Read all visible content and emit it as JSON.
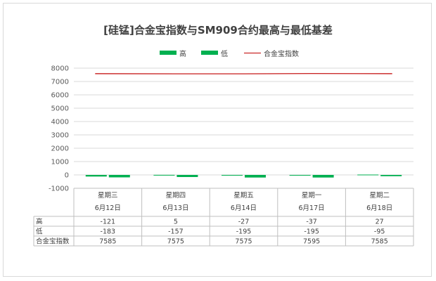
{
  "chart_data": {
    "type": "bar",
    "title": "[硅锰]合金宝指数与SM909合约最高与最低基差",
    "categories": [
      {
        "line1": "星期三",
        "line2": "6月12日"
      },
      {
        "line1": "星期四",
        "line2": "6月13日"
      },
      {
        "line1": "星期五",
        "line2": "6月14日"
      },
      {
        "line1": "星期一",
        "line2": "6月17日"
      },
      {
        "line1": "星期二",
        "line2": "6月18日"
      }
    ],
    "series": [
      {
        "name": "高",
        "kind": "bar",
        "color": "#00b050",
        "values": [
          -121,
          5,
          -27,
          -37,
          27
        ]
      },
      {
        "name": "低",
        "kind": "bar",
        "color": "#00b050",
        "values": [
          -183,
          -157,
          -195,
          -195,
          -95
        ]
      },
      {
        "name": "合金宝指数",
        "kind": "line",
        "color": "#c00000",
        "values": [
          7585,
          7575,
          7575,
          7595,
          7585
        ]
      }
    ],
    "ylim": [
      -1000,
      8000
    ],
    "yticks": [
      8000,
      7000,
      6000,
      5000,
      4000,
      3000,
      2000,
      1000,
      0,
      -1000
    ],
    "legend_position": "top",
    "grid": true,
    "data_table": true,
    "table_rows": [
      {
        "label": "高",
        "values": [
          "-121",
          "5",
          "-27",
          "-37",
          "27"
        ]
      },
      {
        "label": "低",
        "values": [
          "-183",
          "-157",
          "-195",
          "-195",
          "-95"
        ]
      },
      {
        "label": "合金宝指数",
        "values": [
          "7585",
          "7575",
          "7575",
          "7595",
          "7585"
        ]
      }
    ]
  }
}
